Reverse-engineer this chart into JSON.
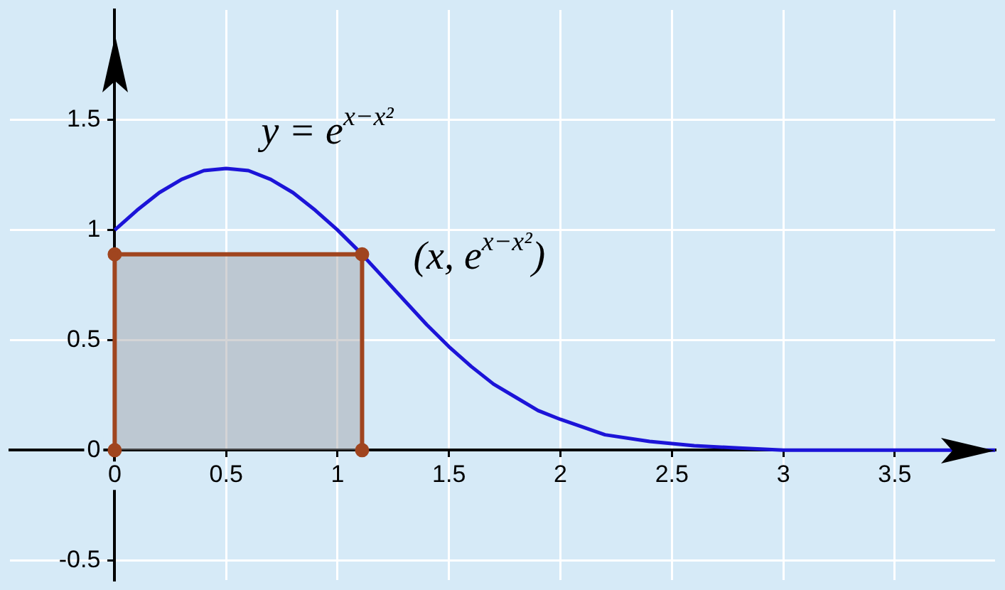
{
  "chart_data": {
    "type": "line",
    "xlim": [
      -0.47,
      3.95
    ],
    "ylim": [
      -0.59,
      2.0
    ],
    "xticks": [
      0,
      0.5,
      1,
      1.5,
      2,
      2.5,
      3,
      3.5
    ],
    "yticks": [
      -0.5,
      0,
      0.5,
      1,
      1.5
    ],
    "grid": true,
    "legend": false,
    "annotations": [
      "y = e$^{x−x²}$",
      {
        "text": "(x, e$^{x−x²}$)",
        "x": 1.11,
        "y": 0.89
      }
    ],
    "series": [
      {
        "color": "#1c14d8",
        "marker": "none",
        "x": [
          0,
          0.1,
          0.2,
          0.3,
          0.4,
          0.5,
          0.6,
          0.7,
          0.8,
          0.9,
          1,
          1.1,
          1.2,
          1.3,
          1.4,
          1.5,
          1.6,
          1.7,
          1.8,
          1.9,
          2,
          2.2,
          2.4,
          2.6,
          2.8,
          3,
          3.5,
          3.95
        ],
        "values": [
          1,
          1.09,
          1.17,
          1.23,
          1.27,
          1.28,
          1.27,
          1.23,
          1.17,
          1.09,
          1,
          0.9,
          0.79,
          0.68,
          0.57,
          0.47,
          0.38,
          0.3,
          0.24,
          0.18,
          0.14,
          0.07,
          0.04,
          0.02,
          0.01,
          0,
          0,
          0
        ]
      },
      {
        "type": "area",
        "color": "#a0451f",
        "marker": "circle",
        "x": [
          0,
          0,
          1.11,
          1.11
        ],
        "values": [
          0,
          0.89,
          0.89,
          0
        ]
      }
    ]
  }
}
